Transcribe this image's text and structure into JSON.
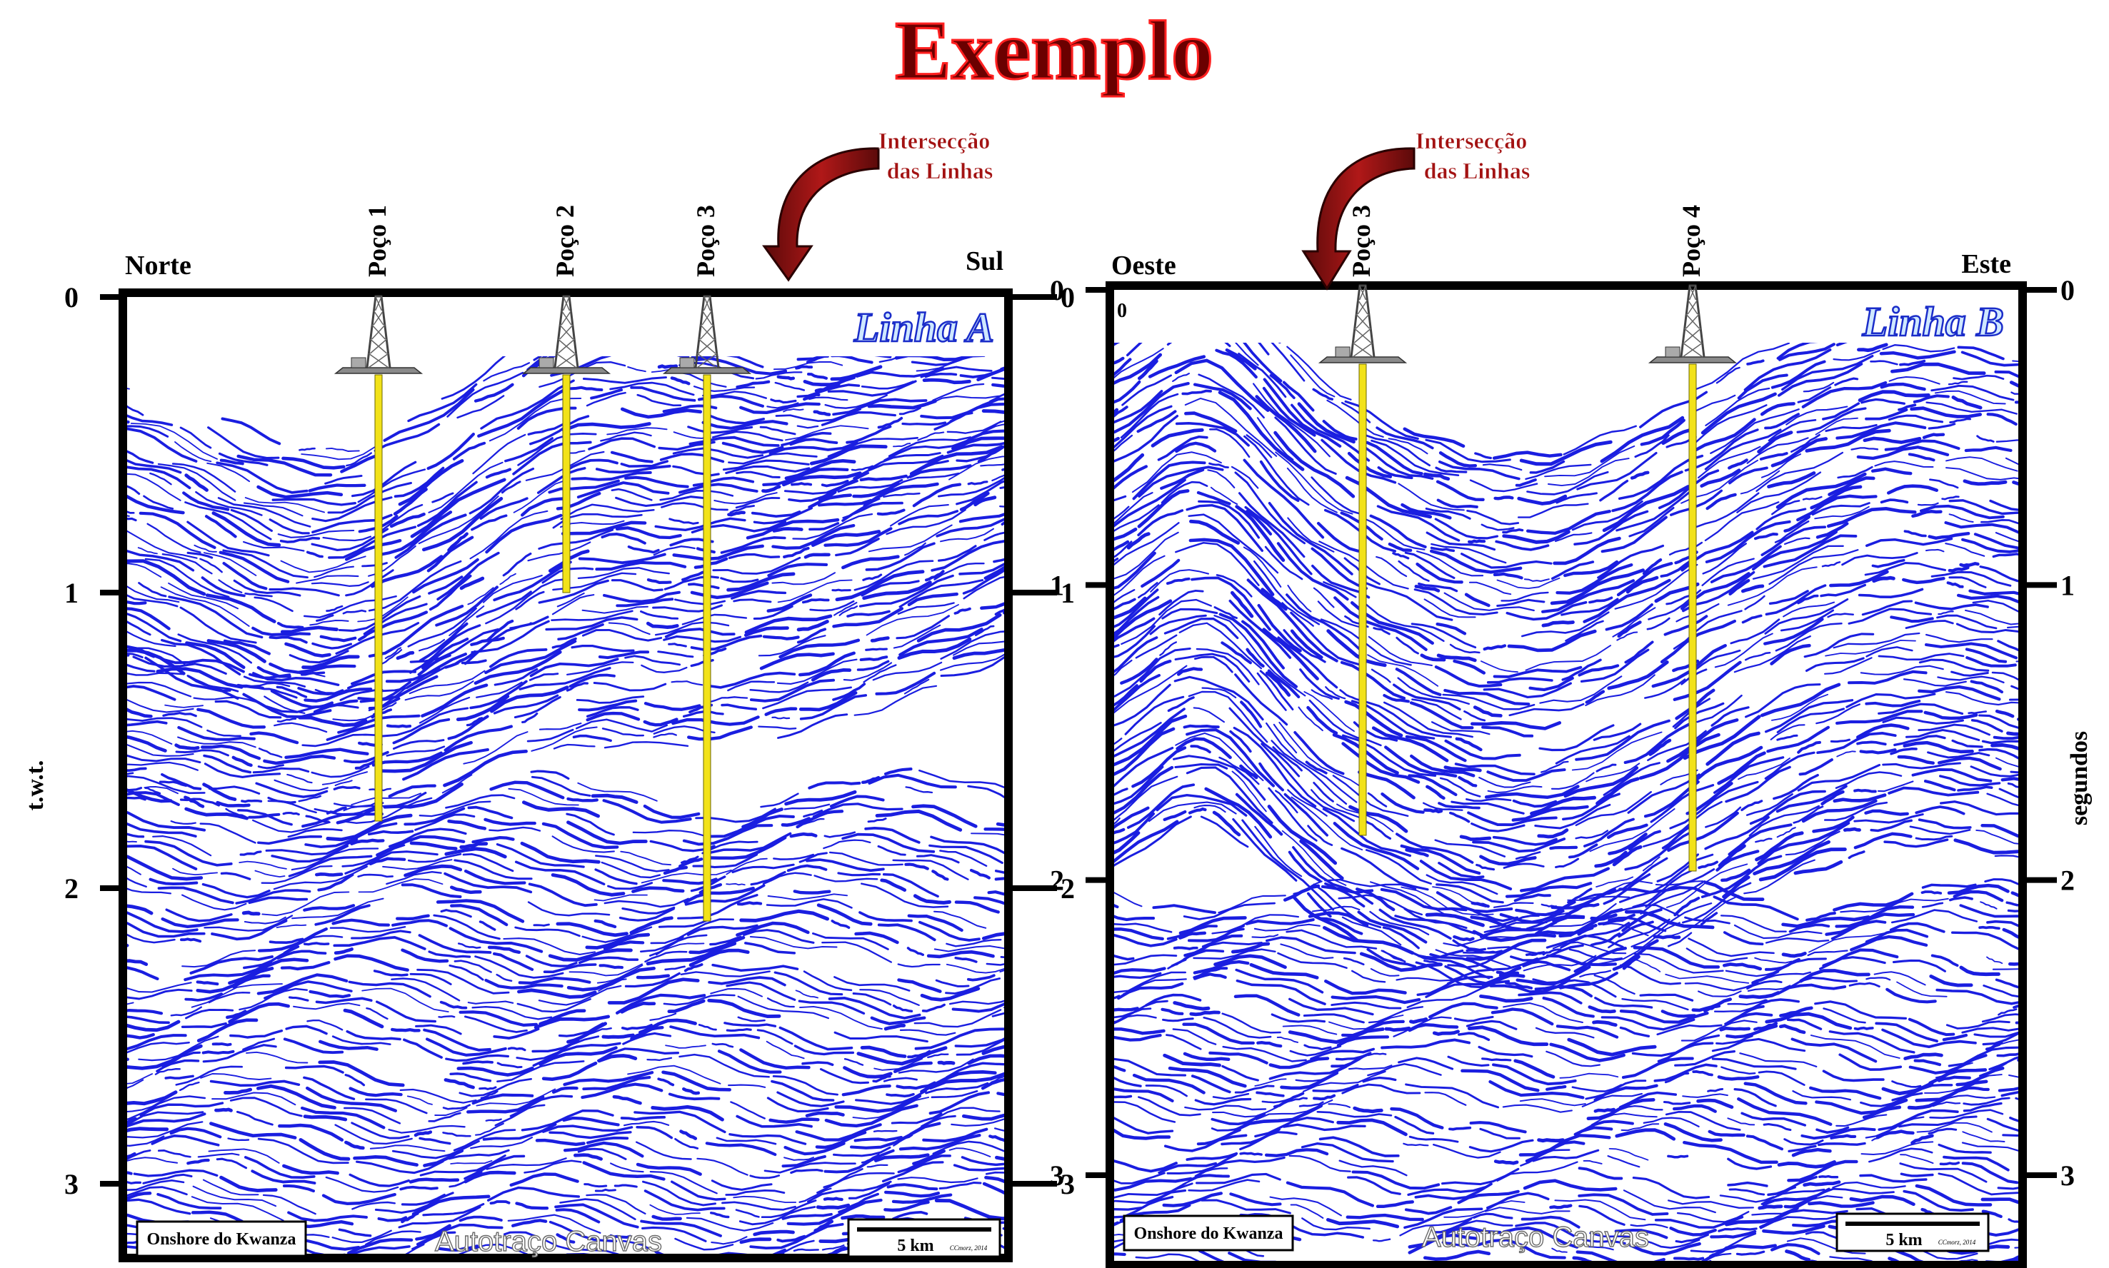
{
  "title": "Exemplo",
  "intersection_label_line1": "Intersecção",
  "intersection_label_line2": "das Linhas",
  "panels": [
    {
      "id": "A",
      "name": "Linha A",
      "left_direction": "Norte",
      "right_direction": "Sul",
      "wells": [
        "Poço 1",
        "Poço 2",
        "Poço 3"
      ],
      "left_axis_label": "t.w.t.",
      "right_axis_label": "",
      "tick_labels": [
        "0",
        "1",
        "2",
        "3"
      ],
      "corner_label": "",
      "region_box": "Onshore do Kwanza",
      "watermark": "Autotraço Canvas",
      "scale_label": "5 km",
      "credit": "CCmorz, 2014",
      "colors": {
        "reflector": "#1a1ee0",
        "well": "#f2e219",
        "frame": "#000000"
      }
    },
    {
      "id": "B",
      "name": "Linha B",
      "left_direction": "Oeste",
      "right_direction": "Este",
      "wells": [
        "Poço 3",
        "Poço 4"
      ],
      "left_axis_label": "",
      "right_axis_label": "segundos",
      "tick_labels": [
        "0",
        "1",
        "2",
        "3"
      ],
      "corner_label": "0",
      "region_box": "Onshore do Kwanza",
      "watermark": "Autotraço Canvas",
      "scale_label": "5 km",
      "credit": "CCmorz, 2014",
      "colors": {
        "reflector": "#1a1ee0",
        "well": "#f2e219",
        "frame": "#000000"
      }
    }
  ],
  "colors": {
    "title": "#6b0000",
    "title_shadow": "#ff0000",
    "arrow": "#8b0d0d"
  }
}
